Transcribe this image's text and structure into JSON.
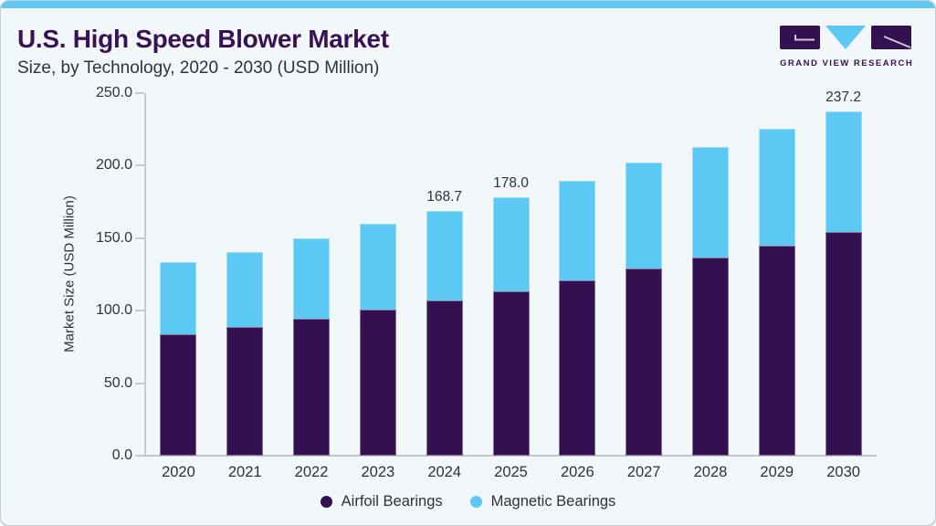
{
  "header": {
    "title": "U.S. High Speed Blower Market",
    "subtitle": "Size, by Technology, 2020 - 2030 (USD Million)",
    "brand": "GRAND VIEW RESEARCH"
  },
  "colors": {
    "accent_bar": "#5FC9F3",
    "airfoil": "#331150",
    "magnetic": "#5BC9F4",
    "title_text": "#3A1154",
    "body_text": "#30313A",
    "axis": "#C5CBD2",
    "background": "#F2F7FA"
  },
  "chart_data": {
    "type": "bar",
    "stacked": true,
    "title": "U.S. High Speed Blower Market Size, by Technology, 2020 - 2030 (USD Million)",
    "categories": [
      "2020",
      "2021",
      "2022",
      "2023",
      "2024",
      "2025",
      "2026",
      "2027",
      "2028",
      "2029",
      "2030"
    ],
    "series": [
      {
        "name": "Airfoil Bearings",
        "color": "#331150",
        "values": [
          83.5,
          88.5,
          94.5,
          101.0,
          107.0,
          113.5,
          121.0,
          129.0,
          136.5,
          145.0,
          154.5
        ]
      },
      {
        "name": "Magnetic Bearings",
        "color": "#5BC9F4",
        "values": [
          50.0,
          52.0,
          55.5,
          59.0,
          61.7,
          64.5,
          68.5,
          73.0,
          76.5,
          80.5,
          82.7
        ]
      }
    ],
    "totals": [
      133.5,
      140.5,
      150.0,
      160.0,
      168.7,
      178.0,
      189.5,
      202.0,
      213.0,
      225.5,
      237.2
    ],
    "total_labels": [
      null,
      null,
      null,
      null,
      "168.7",
      "178.0",
      null,
      null,
      null,
      null,
      "237.2"
    ],
    "xlabel": "",
    "ylabel": "Market Size (USD Million)",
    "ylim": [
      0,
      250
    ],
    "yticks": [
      "0.0",
      "50.0",
      "100.0",
      "150.0",
      "200.0",
      "250.0"
    ],
    "grid": false,
    "legend_position": "bottom"
  }
}
